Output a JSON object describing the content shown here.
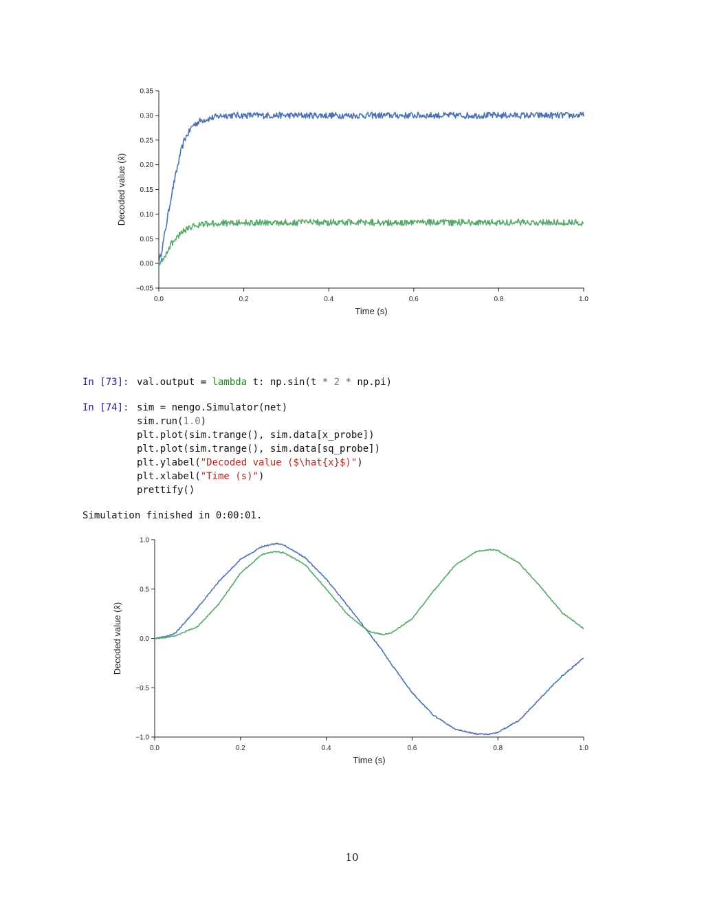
{
  "cells": [
    {
      "prompt": "In [73]:",
      "code": "val.output = lambda t: np.sin(t * 2 * np.pi)"
    },
    {
      "prompt": "In [74]:",
      "lines": [
        "sim = nengo.Simulator(net)",
        "sim.run(1.0)",
        "plt.plot(sim.trange(), sim.data[x_probe])",
        "plt.plot(sim.trange(), sim.data[sq_probe])",
        "plt.ylabel(\"Decoded value ($\\hat{x}$)\")",
        "plt.xlabel(\"Time (s)\")",
        "prettify()"
      ]
    }
  ],
  "output_text": "Simulation finished in 0:00:01.",
  "page_number": "10",
  "chart_data": [
    {
      "type": "line",
      "xlabel": "Time (s)",
      "ylabel": "Decoded value (x̂)",
      "xlim": [
        0.0,
        1.0
      ],
      "ylim": [
        -0.05,
        0.35
      ],
      "xticks": [
        "0.0",
        "0.2",
        "0.4",
        "0.6",
        "0.8",
        "1.0"
      ],
      "yticks": [
        "−0.05",
        "0.00",
        "0.05",
        "0.10",
        "0.15",
        "0.20",
        "0.25",
        "0.30",
        "0.35"
      ],
      "grid": false,
      "x": [
        0.0,
        0.01,
        0.02,
        0.03,
        0.04,
        0.05,
        0.06,
        0.08,
        0.1,
        0.15,
        0.2,
        0.3,
        0.4,
        0.5,
        0.6,
        0.7,
        0.8,
        0.9,
        1.0
      ],
      "series": [
        {
          "color": "#4c72b0",
          "values": [
            0.0,
            0.04,
            0.09,
            0.14,
            0.18,
            0.22,
            0.25,
            0.28,
            0.29,
            0.3,
            0.3,
            0.3,
            0.3,
            0.3,
            0.3,
            0.3,
            0.3,
            0.3,
            0.3
          ]
        },
        {
          "color": "#55a868",
          "values": [
            0.0,
            0.01,
            0.025,
            0.04,
            0.052,
            0.06,
            0.068,
            0.076,
            0.08,
            0.082,
            0.083,
            0.083,
            0.083,
            0.083,
            0.083,
            0.083,
            0.083,
            0.083,
            0.083
          ]
        }
      ]
    },
    {
      "type": "line",
      "xlabel": "Time (s)",
      "ylabel": "Decoded value (x̂)",
      "xlim": [
        0.0,
        1.0
      ],
      "ylim": [
        -1.0,
        1.0
      ],
      "xticks": [
        "0.0",
        "0.2",
        "0.4",
        "0.6",
        "0.8",
        "1.0"
      ],
      "yticks": [
        "−1.0",
        "−0.5",
        "0.0",
        "0.5",
        "1.0"
      ],
      "grid": false,
      "x": [
        0.0,
        0.03,
        0.05,
        0.1,
        0.15,
        0.2,
        0.25,
        0.28,
        0.3,
        0.35,
        0.4,
        0.45,
        0.5,
        0.53,
        0.55,
        0.6,
        0.65,
        0.7,
        0.75,
        0.78,
        0.8,
        0.85,
        0.9,
        0.95,
        1.0
      ],
      "series": [
        {
          "color": "#4c72b0",
          "values": [
            0.0,
            0.02,
            0.06,
            0.31,
            0.58,
            0.8,
            0.93,
            0.96,
            0.95,
            0.82,
            0.6,
            0.33,
            0.05,
            -0.12,
            -0.25,
            -0.55,
            -0.78,
            -0.92,
            -0.97,
            -0.97,
            -0.95,
            -0.83,
            -0.6,
            -0.38,
            -0.2
          ]
        },
        {
          "color": "#55a868",
          "values": [
            0.0,
            0.01,
            0.03,
            0.12,
            0.35,
            0.66,
            0.85,
            0.88,
            0.87,
            0.75,
            0.5,
            0.24,
            0.07,
            0.04,
            0.05,
            0.2,
            0.48,
            0.74,
            0.88,
            0.9,
            0.89,
            0.76,
            0.52,
            0.26,
            0.1
          ]
        }
      ]
    }
  ]
}
